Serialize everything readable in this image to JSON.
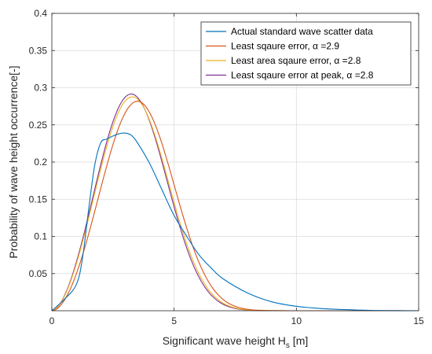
{
  "chart_data": {
    "type": "line",
    "xlabel": "Significant wave height H",
    "xlabel_sub": "s",
    "xlabel_unit": " [m]",
    "ylabel": "Probability of wave height occurrence[-]",
    "xlim": [
      0,
      15
    ],
    "ylim": [
      0,
      0.4
    ],
    "x_ticks": [
      "0",
      "5",
      "10",
      "15"
    ],
    "y_ticks": [
      "0.05",
      "0.1",
      "0.15",
      "0.2",
      "0.25",
      "0.3",
      "0.35",
      "0.4"
    ],
    "grid": true,
    "legend_position": "top-right",
    "series": [
      {
        "name": "Actual standard wave scatter data",
        "color": "#0072BD",
        "x": [
          0,
          0.5,
          1,
          1.25,
          1.5,
          1.75,
          2,
          2.25,
          2.5,
          2.75,
          3,
          3.25,
          3.5,
          4,
          4.5,
          5,
          5.5,
          6,
          6.5,
          7,
          8,
          9,
          10,
          11,
          12,
          13,
          14,
          15
        ],
        "y": [
          0,
          0.015,
          0.035,
          0.07,
          0.135,
          0.195,
          0.226,
          0.231,
          0.235,
          0.238,
          0.239,
          0.236,
          0.226,
          0.198,
          0.163,
          0.128,
          0.101,
          0.076,
          0.058,
          0.043,
          0.024,
          0.012,
          0.006,
          0.003,
          0.0015,
          0.0005,
          0.0002,
          0
        ]
      },
      {
        "name": "Least sqaure error, α =2.9",
        "color": "#D95319",
        "alpha": 2.9
      },
      {
        "name": "Least area sqaure error, α =2.8",
        "color": "#EDB120",
        "alpha": 2.8
      },
      {
        "name": "Least sqaure error at peak, α =2.8",
        "color": "#7E2F8E",
        "alpha": 2.8
      }
    ]
  }
}
